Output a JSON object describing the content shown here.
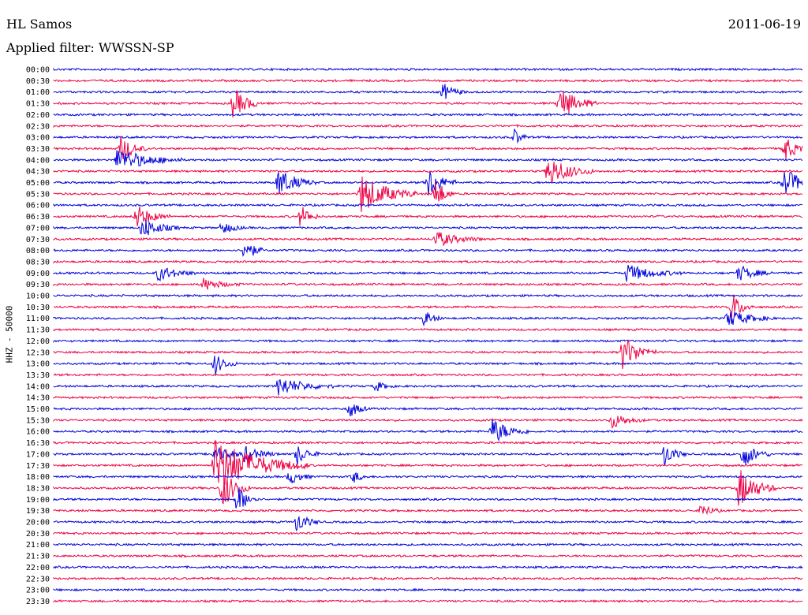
{
  "header": {
    "station": "HL Samos",
    "date": "2011-06-19",
    "filter": "Applied filter: WWSSN-SP"
  },
  "chart_data": {
    "type": "line",
    "title": "HL Samos",
    "date": "2011-06-19",
    "filter": "WWSSN-SP",
    "ylabel": "HHZ - 50000",
    "xlabel": "",
    "grid": false,
    "colors": [
      "#0000dd",
      "#ee0044"
    ],
    "tick_labels": [
      "00:00",
      "00:30",
      "01:00",
      "01:30",
      "02:00",
      "02:30",
      "03:00",
      "03:30",
      "04:00",
      "04:30",
      "05:00",
      "05:30",
      "06:00",
      "06:30",
      "07:00",
      "07:30",
      "08:00",
      "08:30",
      "09:00",
      "09:30",
      "10:00",
      "10:30",
      "11:00",
      "11:30",
      "12:00",
      "12:30",
      "13:00",
      "13:30",
      "14:00",
      "14:30",
      "15:00",
      "15:30",
      "16:00",
      "16:30",
      "17:00",
      "17:30",
      "18:00",
      "18:30",
      "19:00",
      "19:30",
      "20:00",
      "20:30",
      "21:00",
      "21:30",
      "22:00",
      "22:30",
      "23:00",
      "23:30"
    ],
    "events": [
      {
        "row": 2,
        "x": 0.52,
        "amp": 1.3,
        "dur": 0.012
      },
      {
        "row": 3,
        "x": 0.24,
        "amp": 2.4,
        "dur": 0.015
      },
      {
        "row": 3,
        "x": 0.675,
        "amp": 2.6,
        "dur": 0.02
      },
      {
        "row": 6,
        "x": 0.615,
        "amp": 1.3,
        "dur": 0.008
      },
      {
        "row": 7,
        "x": 0.09,
        "amp": 2.0,
        "dur": 0.014
      },
      {
        "row": 7,
        "x": 0.975,
        "amp": 2.0,
        "dur": 0.014
      },
      {
        "row": 8,
        "x": 0.085,
        "amp": 1.8,
        "dur": 0.035
      },
      {
        "row": 9,
        "x": 0.66,
        "amp": 2.3,
        "dur": 0.025
      },
      {
        "row": 10,
        "x": 0.3,
        "amp": 2.2,
        "dur": 0.02
      },
      {
        "row": 10,
        "x": 0.5,
        "amp": 2.3,
        "dur": 0.015
      },
      {
        "row": 10,
        "x": 0.975,
        "amp": 2.2,
        "dur": 0.02
      },
      {
        "row": 11,
        "x": 0.41,
        "amp": 3.0,
        "dur": 0.03
      },
      {
        "row": 11,
        "x": 0.51,
        "amp": 2.5,
        "dur": 0.01
      },
      {
        "row": 13,
        "x": 0.11,
        "amp": 1.8,
        "dur": 0.018
      },
      {
        "row": 13,
        "x": 0.33,
        "amp": 1.8,
        "dur": 0.01
      },
      {
        "row": 14,
        "x": 0.118,
        "amp": 1.6,
        "dur": 0.02
      },
      {
        "row": 14,
        "x": 0.225,
        "amp": 1.0,
        "dur": 0.012
      },
      {
        "row": 15,
        "x": 0.51,
        "amp": 1.2,
        "dur": 0.025
      },
      {
        "row": 16,
        "x": 0.255,
        "amp": 2.0,
        "dur": 0.01
      },
      {
        "row": 18,
        "x": 0.14,
        "amp": 1.2,
        "dur": 0.02
      },
      {
        "row": 18,
        "x": 0.765,
        "amp": 1.3,
        "dur": 0.03
      },
      {
        "row": 18,
        "x": 0.915,
        "amp": 1.2,
        "dur": 0.018
      },
      {
        "row": 19,
        "x": 0.2,
        "amp": 0.9,
        "dur": 0.02
      },
      {
        "row": 21,
        "x": 0.905,
        "amp": 2.2,
        "dur": 0.012
      },
      {
        "row": 22,
        "x": 0.495,
        "amp": 1.2,
        "dur": 0.01
      },
      {
        "row": 22,
        "x": 0.9,
        "amp": 1.3,
        "dur": 0.025
      },
      {
        "row": 25,
        "x": 0.76,
        "amp": 2.7,
        "dur": 0.018
      },
      {
        "row": 26,
        "x": 0.215,
        "amp": 1.6,
        "dur": 0.012
      },
      {
        "row": 28,
        "x": 0.3,
        "amp": 1.4,
        "dur": 0.03
      },
      {
        "row": 28,
        "x": 0.43,
        "amp": 0.8,
        "dur": 0.01
      },
      {
        "row": 30,
        "x": 0.395,
        "amp": 1.4,
        "dur": 0.01
      },
      {
        "row": 31,
        "x": 0.745,
        "amp": 1.2,
        "dur": 0.018
      },
      {
        "row": 32,
        "x": 0.585,
        "amp": 2.0,
        "dur": 0.02
      },
      {
        "row": 34,
        "x": 0.215,
        "amp": 1.2,
        "dur": 0.02
      },
      {
        "row": 34,
        "x": 0.255,
        "amp": 1.0,
        "dur": 0.02
      },
      {
        "row": 34,
        "x": 0.325,
        "amp": 1.6,
        "dur": 0.012
      },
      {
        "row": 34,
        "x": 0.815,
        "amp": 1.8,
        "dur": 0.012
      },
      {
        "row": 34,
        "x": 0.92,
        "amp": 2.0,
        "dur": 0.015
      },
      {
        "row": 35,
        "x": 0.215,
        "amp": 4.0,
        "dur": 0.05
      },
      {
        "row": 36,
        "x": 0.315,
        "amp": 1.2,
        "dur": 0.012
      },
      {
        "row": 36,
        "x": 0.4,
        "amp": 1.0,
        "dur": 0.008
      },
      {
        "row": 37,
        "x": 0.225,
        "amp": 3.2,
        "dur": 0.015
      },
      {
        "row": 37,
        "x": 0.915,
        "amp": 3.0,
        "dur": 0.02
      },
      {
        "row": 38,
        "x": 0.245,
        "amp": 2.2,
        "dur": 0.012
      },
      {
        "row": 39,
        "x": 0.865,
        "amp": 1.2,
        "dur": 0.01
      },
      {
        "row": 40,
        "x": 0.325,
        "amp": 1.6,
        "dur": 0.012
      }
    ]
  }
}
